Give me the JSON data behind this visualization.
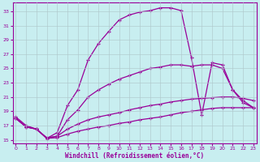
{
  "xlabel": "Windchill (Refroidissement éolien,°C)",
  "bg_color": "#c8eef0",
  "line_color": "#990099",
  "grid_color": "#b0c8cc",
  "xlim": [
    -0.3,
    23.3
  ],
  "ylim": [
    14.5,
    34.2
  ],
  "xticks": [
    0,
    1,
    2,
    3,
    4,
    5,
    6,
    7,
    8,
    9,
    10,
    11,
    12,
    13,
    14,
    15,
    16,
    17,
    18,
    19,
    20,
    21,
    22,
    23
  ],
  "yticks": [
    15,
    17,
    19,
    21,
    23,
    25,
    27,
    29,
    31,
    33
  ],
  "line_big_x": [
    0,
    1,
    2,
    3,
    4,
    5,
    6,
    7,
    8,
    9,
    10,
    11,
    12,
    13,
    14,
    15,
    16,
    17,
    18,
    19,
    20,
    21,
    22,
    23
  ],
  "line_big_y": [
    18.2,
    17.0,
    16.5,
    15.2,
    16.0,
    19.8,
    22.0,
    26.2,
    28.5,
    30.2,
    31.8,
    32.5,
    32.9,
    33.1,
    33.5,
    33.5,
    33.1,
    26.5,
    18.5,
    25.8,
    25.5,
    22.0,
    20.5,
    19.5
  ],
  "line_med_x": [
    0,
    1,
    2,
    3,
    4,
    5,
    6,
    7,
    8,
    9,
    10,
    11,
    12,
    13,
    14,
    15,
    16,
    17,
    18,
    19,
    20,
    21,
    22,
    23
  ],
  "line_med_y": [
    18.0,
    16.8,
    16.5,
    15.2,
    15.5,
    17.8,
    19.2,
    21.0,
    22.0,
    22.8,
    23.5,
    24.0,
    24.5,
    25.0,
    25.2,
    25.5,
    25.5,
    25.3,
    25.5,
    25.5,
    25.0,
    22.0,
    20.2,
    19.5
  ],
  "line_lin1_x": [
    0,
    1,
    2,
    3,
    4,
    5,
    6,
    7,
    8,
    9,
    10,
    11,
    12,
    13,
    14,
    15,
    16,
    17,
    18,
    19,
    20,
    21,
    22,
    23
  ],
  "line_lin1_y": [
    18.0,
    16.8,
    16.5,
    15.3,
    15.5,
    16.5,
    17.2,
    17.8,
    18.2,
    18.5,
    18.8,
    19.2,
    19.5,
    19.8,
    20.0,
    20.3,
    20.5,
    20.7,
    20.8,
    20.9,
    21.0,
    21.0,
    20.8,
    20.5
  ],
  "line_lin2_x": [
    0,
    1,
    2,
    3,
    4,
    5,
    6,
    7,
    8,
    9,
    10,
    11,
    12,
    13,
    14,
    15,
    16,
    17,
    18,
    19,
    20,
    21,
    22,
    23
  ],
  "line_lin2_y": [
    18.0,
    16.8,
    16.5,
    15.2,
    15.3,
    15.8,
    16.2,
    16.5,
    16.8,
    17.0,
    17.3,
    17.5,
    17.8,
    18.0,
    18.2,
    18.5,
    18.8,
    19.0,
    19.2,
    19.4,
    19.5,
    19.5,
    19.5,
    19.5
  ]
}
